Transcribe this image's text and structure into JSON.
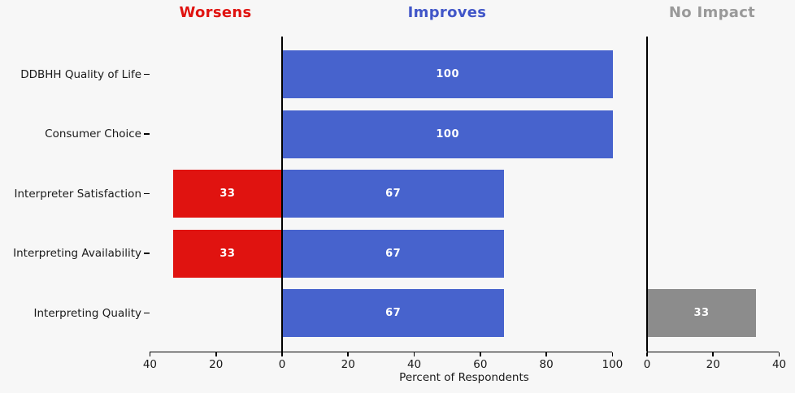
{
  "colors": {
    "background": "#f7f7f7",
    "improves_bar": "#4763cd",
    "worsens_bar": "#e01310",
    "no_impact_bar": "#8c8c8c",
    "header_improves": "#4156c8",
    "header_worsens": "#e01310",
    "header_no_impact": "#999999",
    "axis": "#000000",
    "text": "#1a1a1a",
    "bar_value_text": "#ffffff"
  },
  "headers": {
    "worsens": "Worsens",
    "improves": "Improves",
    "no_impact": "No Impact"
  },
  "chart_data": {
    "type": "bar",
    "orientation": "horizontal",
    "xlabel": "Percent of Respondents",
    "categories": [
      "DDBHH Quality of Life",
      "Consumer Choice",
      "Interpreter Satisfaction",
      "Interpreting Availability",
      "Interpreting Quality"
    ],
    "series": [
      {
        "name": "Worsens",
        "color_key": "worsens_bar",
        "direction": "negative",
        "panel": "main",
        "values": [
          0,
          0,
          33,
          33,
          0
        ]
      },
      {
        "name": "Improves",
        "color_key": "improves_bar",
        "direction": "positive",
        "panel": "main",
        "values": [
          100,
          100,
          67,
          67,
          67
        ]
      },
      {
        "name": "No Impact",
        "color_key": "no_impact_bar",
        "direction": "positive",
        "panel": "side",
        "values": [
          0,
          0,
          0,
          0,
          33
        ]
      }
    ],
    "main_axis": {
      "range": [
        -40,
        100
      ],
      "ticks": [
        -40,
        -20,
        0,
        20,
        40,
        60,
        80,
        100
      ],
      "tick_labels": [
        "40",
        "20",
        "0",
        "20",
        "40",
        "60",
        "80",
        "100"
      ]
    },
    "side_axis": {
      "range": [
        0,
        40
      ],
      "ticks": [
        0,
        20,
        40
      ],
      "tick_labels": [
        "0",
        "20",
        "40"
      ]
    },
    "bar_value_labels_inside": true,
    "grid": false,
    "legend": "none (column headers act as legend)"
  }
}
